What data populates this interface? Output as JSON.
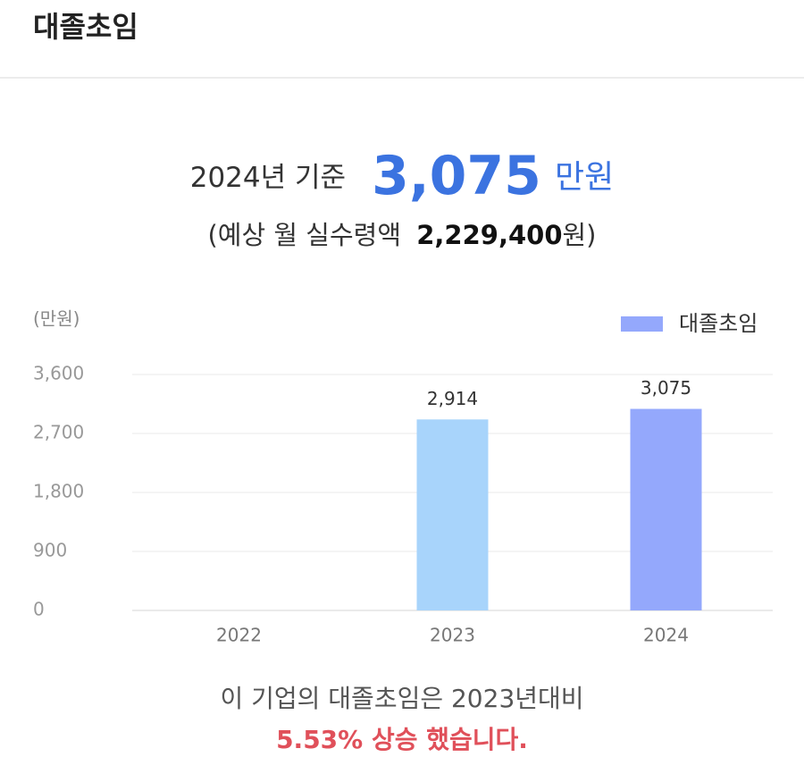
{
  "header": {
    "title": "대졸초임"
  },
  "summary": {
    "basis": "2024년 기준",
    "amount": "3,075",
    "unit": "만원",
    "monthly_prefix": "(예상 월 실수령액",
    "monthly_amount": "2,229,400",
    "monthly_suffix": "원)"
  },
  "chart_data": {
    "type": "bar",
    "unit_label": "(만원)",
    "categories": [
      "2022",
      "2023",
      "2024"
    ],
    "series": [
      {
        "name": "대졸초임",
        "color": "#94a8fc",
        "values": [
          null,
          2914,
          3075
        ],
        "value_labels": [
          null,
          "2,914",
          "3,075"
        ]
      }
    ],
    "past_color": "#a8d4fb",
    "ylim": [
      0,
      3600
    ],
    "yticks": [
      0,
      900,
      {
        "value": 1800,
        "label": "1,800"
      },
      {
        "value": 2700,
        "label": "2,700"
      },
      {
        "value": 3600,
        "label": "3,600"
      }
    ],
    "grid": true,
    "legend": "top-right"
  },
  "footer": {
    "comparison": "이 기업의 대졸초임은 2023년대비",
    "change": "5.53% 상승 했습니다."
  }
}
